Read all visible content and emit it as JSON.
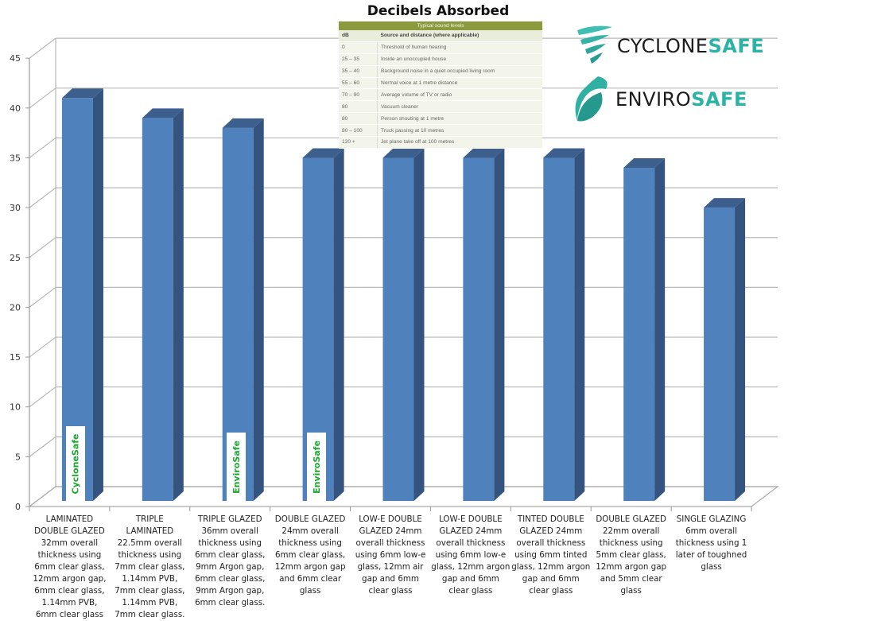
{
  "chart_data": {
    "type": "bar",
    "style": "3d-column",
    "title": "Decibels Absorbed",
    "xlabel": "",
    "ylabel": "",
    "ylim": [
      0,
      45
    ],
    "yticks": [
      0,
      5,
      10,
      15,
      20,
      25,
      30,
      35,
      40,
      45
    ],
    "grid": true,
    "bar_color": "#4f81bd",
    "categories": [
      "LAMINATED\nDOUBLE GLAZED\n32mm overall\nthickness using\n6mm clear glass,\n12mm argon gap,\n6mm clear glass,\n1.14mm PVB,\n6mm clear glass",
      "TRIPLE\nLAMINATED\n22.5mm overall\nthickness using\n7mm clear glass,\n1.14mm PVB,\n7mm clear glass,\n1.14mm PVB,\n7mm clear glass.",
      "TRIPLE GLAZED\n36mm overall\nthickness using\n6mm clear glass,\n9mm Argon gap,\n6mm clear glass,\n9mm Argon gap,\n6mm clear glass.",
      "DOUBLE GLAZED\n24mm overall\nthickness using\n6mm clear glass,\n12mm argon gap\nand 6mm clear\nglass",
      "LOW-E DOUBLE\nGLAZED 24mm\noverall thickness\nusing 6mm low-e\nglass, 12mm air\ngap and 6mm\nclear glass",
      "LOW-E DOUBLE\nGLAZED 24mm\noverall thickness\nusing 6mm low-e\nglass, 12mm argon\ngap and 6mm\nclear glass",
      "TINTED DOUBLE\nGLAZED 24mm\noverall thickness\nusing 6mm tinted\nglass, 12mm argon\ngap and 6mm\nclear glass",
      "DOUBLE GLAZED\n22mm overall\nthickness using\n5mm clear glass,\n12mm argon gap\nand 5mm clear\nglass",
      "SINGLE GLAZING\n6mm overall\nthickness using 1\nlater of toughned\nglass"
    ],
    "values": [
      41,
      39,
      38,
      35,
      35,
      35,
      35,
      34,
      30
    ],
    "annotations": [
      {
        "category_index": 0,
        "text": "CycloneSafe"
      },
      {
        "category_index": 2,
        "text": "EnviroSafe"
      },
      {
        "category_index": 3,
        "text": "EnviroSafe"
      }
    ]
  },
  "sound_table": {
    "caption": "Typical sound levels",
    "headers": [
      "dB",
      "Source and distance (where applicable)"
    ],
    "rows": [
      [
        "0",
        "Threshold of human hearing"
      ],
      [
        "25 – 35",
        "Inside an unoccupied house"
      ],
      [
        "35 – 40",
        "Background noise in a quiet occupied living room"
      ],
      [
        "55 – 60",
        "Normal voice at 1 metre distance"
      ],
      [
        "70 – 90",
        "Average volume of TV or radio"
      ],
      [
        "80",
        "Vacuum cleaner"
      ],
      [
        "80",
        "Person shouting at 1 metre"
      ],
      [
        "80 – 100",
        "Truck passing at 10 metres"
      ],
      [
        "120 +",
        "Jet plane take off at 100 metres"
      ]
    ]
  },
  "logos": {
    "cyclonesafe": {
      "main": "CYCLONE",
      "accent": "SAFE"
    },
    "envirosafe": {
      "main": "ENVIRO",
      "accent": "SAFE"
    },
    "accent_color": "#2bb3a6"
  }
}
